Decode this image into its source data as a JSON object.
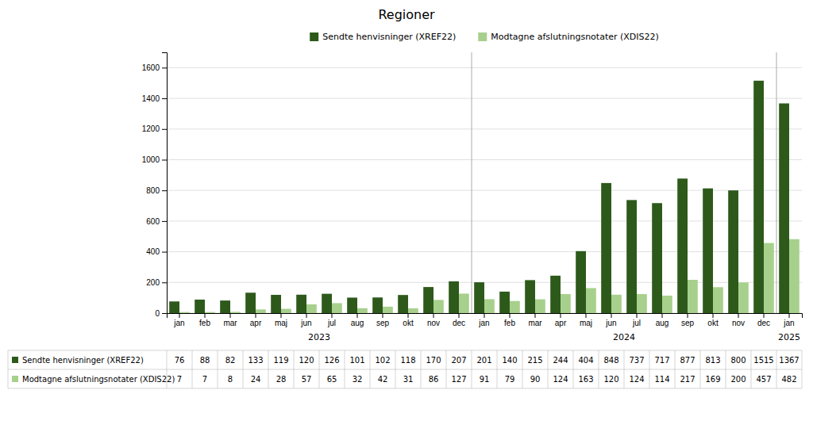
{
  "chart_data": {
    "type": "bar",
    "title": "Regioner",
    "categories": [
      "jan",
      "feb",
      "mar",
      "apr",
      "maj",
      "jun",
      "jul",
      "aug",
      "sep",
      "okt",
      "nov",
      "dec",
      "jan",
      "feb",
      "mar",
      "apr",
      "maj",
      "jun",
      "jul",
      "aug",
      "sep",
      "okt",
      "nov",
      "dec",
      "jan"
    ],
    "series": [
      {
        "name": "Sendte henvisninger (XREF22)",
        "color": "#2d5a1b",
        "values": [
          76,
          88,
          82,
          133,
          119,
          120,
          126,
          101,
          102,
          118,
          170,
          207,
          201,
          140,
          215,
          244,
          404,
          848,
          737,
          717,
          877,
          813,
          800,
          1515,
          1367
        ]
      },
      {
        "name": "Modtagne afslutningsnotater (XDIS22)",
        "color": "#a8d08d",
        "values": [
          7,
          7,
          8,
          24,
          28,
          57,
          65,
          32,
          42,
          31,
          86,
          127,
          91,
          79,
          90,
          124,
          163,
          120,
          124,
          114,
          217,
          169,
          200,
          457,
          482
        ]
      }
    ],
    "ylim": [
      0,
      1700
    ],
    "yticks": [
      0,
      200,
      400,
      600,
      800,
      1000,
      1200,
      1400,
      1600
    ],
    "grid": true,
    "legend": "top",
    "annotations": [
      {
        "text": "2023",
        "start": 0,
        "end": 11
      },
      {
        "text": "2024",
        "start": 12,
        "end": 23
      },
      {
        "text": "2025",
        "start": 24,
        "end": 24
      }
    ]
  }
}
